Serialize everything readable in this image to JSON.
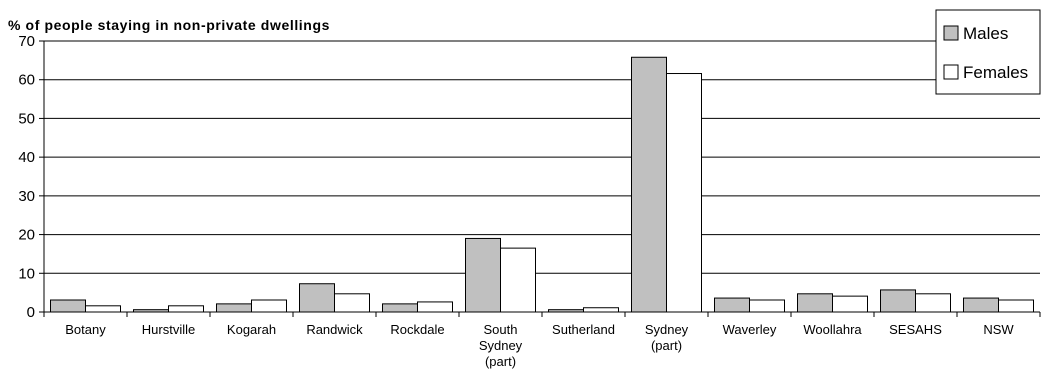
{
  "chart_data": {
    "type": "bar",
    "title": "% of people staying in non-private dwellings",
    "xlabel": "",
    "ylabel": "",
    "ylim": [
      0,
      70
    ],
    "yticks": [
      "0",
      "10",
      "20",
      "30",
      "40",
      "50",
      "60",
      "70"
    ],
    "grid": true,
    "legend_position": "top-right",
    "categories": [
      [
        "Botany"
      ],
      [
        "Hurstville"
      ],
      [
        "Kogarah"
      ],
      [
        "Randwick"
      ],
      [
        "Rockdale"
      ],
      [
        "South",
        "Sydney",
        "(part)"
      ],
      [
        "Sutherland"
      ],
      [
        "Sydney",
        "(part)"
      ],
      [
        "Waverley"
      ],
      [
        "Woollahra"
      ],
      [
        "SESAHS"
      ],
      [
        "NSW"
      ]
    ],
    "series": [
      {
        "name": "Males",
        "color": "#c0c0c0",
        "values": [
          3.1,
          0.6,
          2.1,
          7.3,
          2.1,
          19.0,
          0.6,
          65.8,
          3.6,
          4.7,
          5.7,
          3.6
        ]
      },
      {
        "name": "Females",
        "color": "#ffffff",
        "values": [
          1.6,
          1.6,
          3.1,
          4.7,
          2.6,
          16.5,
          1.1,
          61.6,
          3.1,
          4.1,
          4.7,
          3.1
        ]
      }
    ]
  }
}
